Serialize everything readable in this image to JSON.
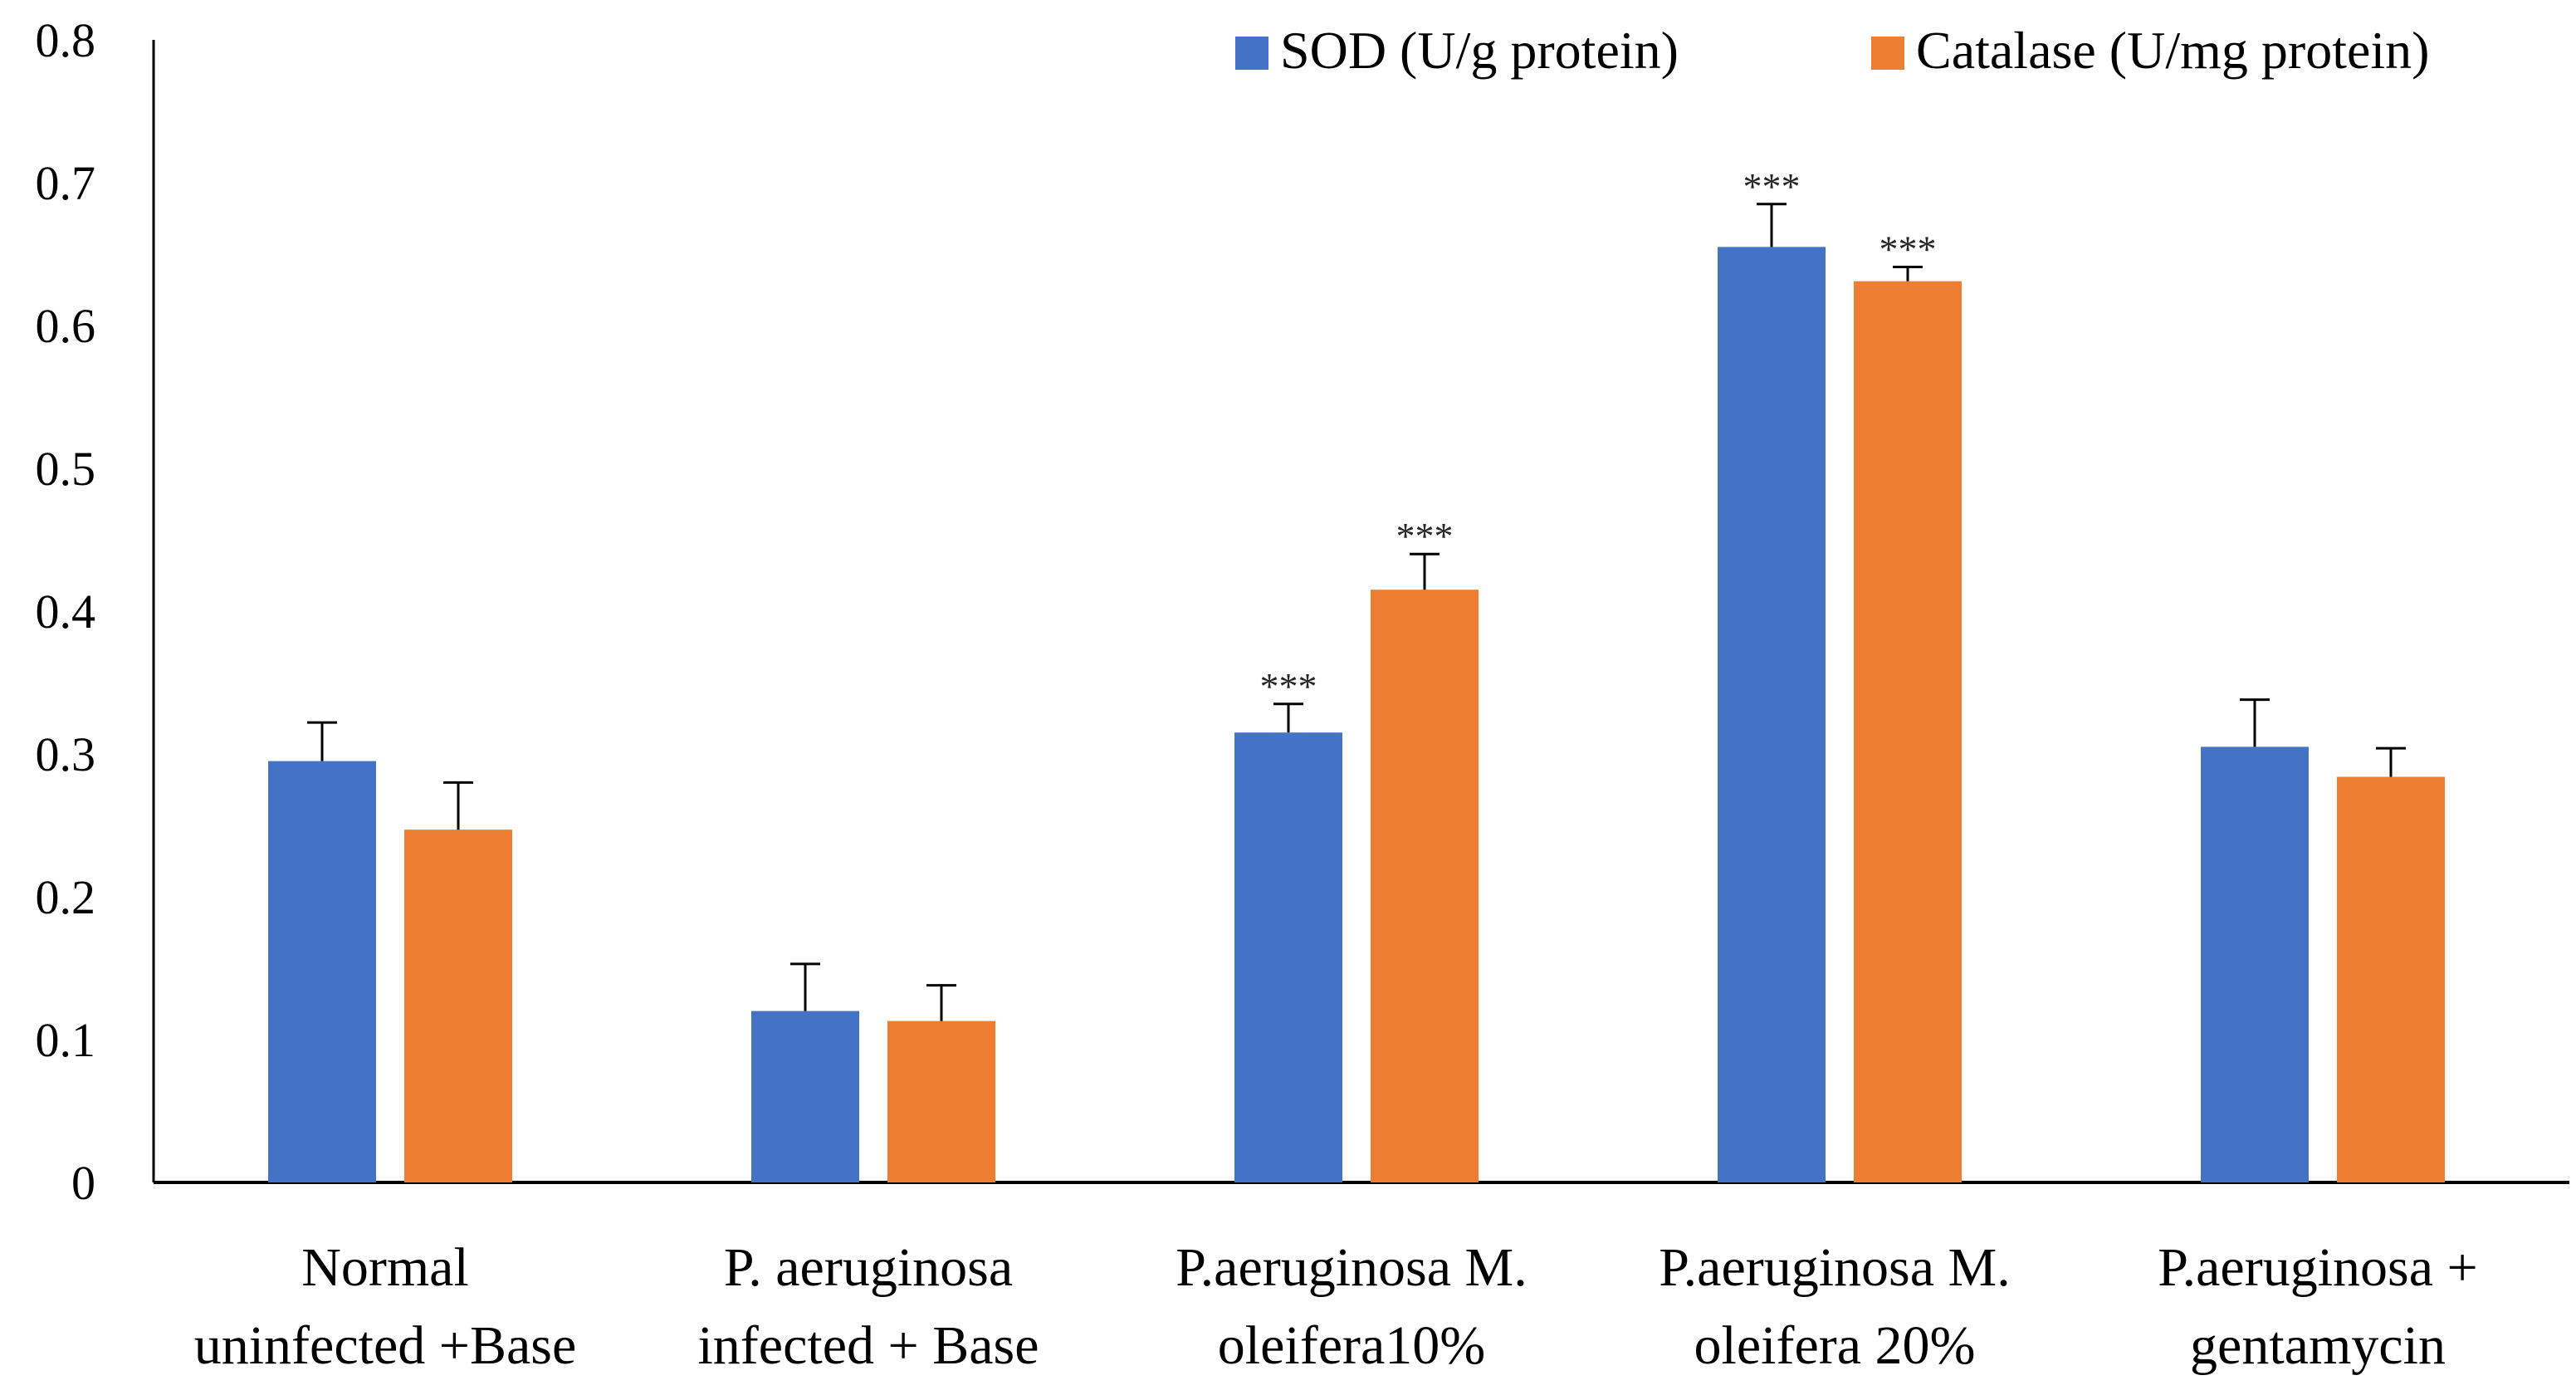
{
  "chart_data": {
    "type": "bar",
    "title": "",
    "xlabel": "",
    "ylabel": "",
    "ylim": [
      0,
      0.8
    ],
    "yticks": [
      "0",
      "0.1",
      "0.2",
      "0.3",
      "0.4",
      "0.5",
      "0.6",
      "0.7",
      "0.8"
    ],
    "grid": false,
    "legend_position": "top-right",
    "categories": [
      [
        "Normal",
        "uninfected +Base"
      ],
      [
        "P. aeruginosa",
        "infected  + Base"
      ],
      [
        "P.aeruginosa  M.",
        "oleifera10%"
      ],
      [
        "P.aeruginosa  M.",
        "oleifera 20%"
      ],
      [
        "P.aeruginosa  +",
        "gentamycin"
      ]
    ],
    "series": [
      {
        "name": "SOD (U/g protein)",
        "color": "#4472C4",
        "values": [
          0.295,
          0.12,
          0.315,
          0.655,
          0.305
        ],
        "errors": [
          0.027,
          0.033,
          0.02,
          0.03,
          0.033
        ],
        "significance": [
          "",
          "",
          "***",
          "***",
          ""
        ]
      },
      {
        "name": "Catalase (U/mg protein)",
        "color": "#ED7D31",
        "values": [
          0.247,
          0.113,
          0.415,
          0.631,
          0.284
        ],
        "errors": [
          0.033,
          0.025,
          0.025,
          0.01,
          0.02
        ],
        "significance": [
          "",
          "",
          "***",
          "***",
          ""
        ]
      }
    ]
  }
}
